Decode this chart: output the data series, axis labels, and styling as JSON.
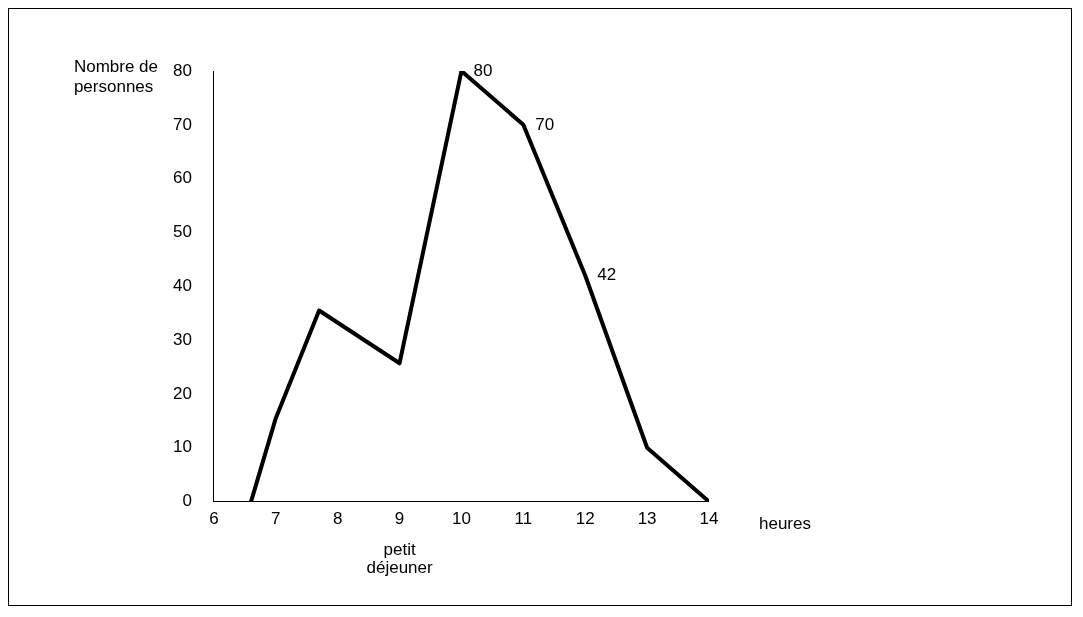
{
  "chart_data": {
    "type": "line",
    "xlabel": "heures",
    "ylabel": "Nombre de\npersonnes",
    "x": [
      6.6,
      7,
      7.7,
      9,
      10,
      11,
      12,
      13,
      14
    ],
    "series": [
      {
        "color": "#000000",
        "values": [
          0,
          15.5,
          35.5,
          25.7,
          80,
          70,
          42,
          10,
          0
        ],
        "value_labels": [
          null,
          null,
          null,
          null,
          "80",
          "70",
          "42",
          null,
          null
        ]
      }
    ],
    "xlim": [
      6,
      14
    ],
    "xticks": [
      6,
      7,
      8,
      9,
      10,
      11,
      12,
      13,
      14
    ],
    "ylim": [
      0,
      80
    ],
    "yticks": [
      0,
      10,
      20,
      30,
      40,
      50,
      60,
      70,
      80
    ],
    "grid": false,
    "legend": false,
    "marker": "none",
    "line_style": "solid",
    "annotations": [
      "petit\ndéjeuner"
    ]
  }
}
